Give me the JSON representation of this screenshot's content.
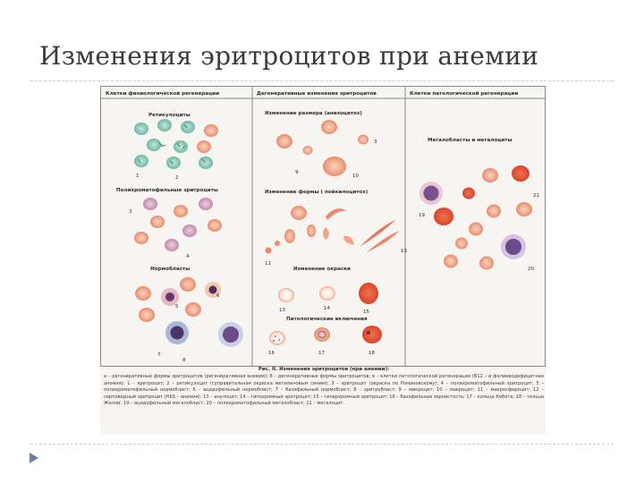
{
  "slide": {
    "title": "Изменения эритроцитов при анемии"
  },
  "figure": {
    "columns": [
      "Клетки физиологической регенерации",
      "Дегенеративные изменения эритроцитов",
      "Клетки патологической регенерации"
    ],
    "sections": {
      "reticulocytes": "Ретикулоциты",
      "polychromatophils": "Полихроматофильные эритроциты",
      "normoblasts": "Нормобласты",
      "anisocytosis": "Изменение размера (анизоцитоз)",
      "poikilocytosis": "Изменение формы ( пойкилоцитоз)",
      "staining": "Изменение окраски",
      "inclusions": "Патологические включения",
      "megaloblasts": "Мегалобласты и мегалоциты"
    },
    "numbers": [
      "1",
      "2",
      "3",
      "4",
      "5",
      "6",
      "7",
      "8",
      "9",
      "10",
      "11",
      "12",
      "13",
      "14",
      "15",
      "16",
      "17",
      "18",
      "19",
      "20",
      "21"
    ]
  },
  "caption": {
    "title": "Рис. II. Изменения эритроцитов (при анемии):",
    "body": "а – регенеративные формы эритроцитов (регенеративная анемия); б – дегенеративные формы эритроцитов; в – клетки патологической регенерации (B12 – и фолиеводефицитная анемия); 1 – эритроцит; 2 – ретикулоцит (суправитальная окраска метиленовым синим); 3 – эритроцит (окраска по Романовскому); 4 – полихроматофильный эритроцит; 5 – полихроматофильный нормобласт; 6 – ацидофильный нормобласт; 7 – базофильный нормобласт; 8 – эритробласт; 9 – микроцит; 10 – макроцит; 11 – микросфероцит; 12 – серповидный эритроцит (HbS – анемия); 13 – анулоцит; 14 – гипохромный эритроцит; 15 – гиперхромный эритроцит; 16 – базофильная зернистость; 17 – кольца Кебота; 18 – тельца Жолли; 19 – ацидофильный мегалобласт; 20 – полихроматофильный мегалобласт; 21 – мегалоцит."
  },
  "colors": {
    "title": "#3a3a3a",
    "rbc": "#f0a184",
    "rbc_center": "#f8d3c0",
    "reticulocyte": "#8ccbbf",
    "polychrome": "#d2a3bd",
    "nucleus": "#5c3a6d",
    "hyperchrome": "#e2593a",
    "megalo_nucleus": "#7a4f8f",
    "bullet": "#6d7fa6"
  }
}
